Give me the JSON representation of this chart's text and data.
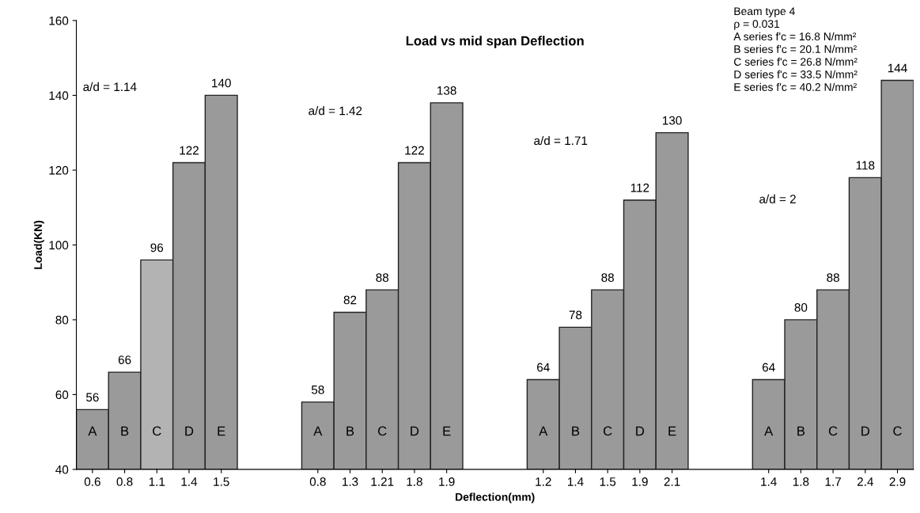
{
  "chart_data": {
    "type": "bar",
    "title": "Load vs mid span Deflection",
    "xlabel": "Deflection(mm)",
    "ylabel": "Load(KN)",
    "categories": [
      "0.6",
      "0.8",
      "1.1",
      "1.4",
      "1.5",
      null,
      null,
      "0.8",
      "1.3",
      "1.21",
      "1.8",
      "1.9",
      null,
      null,
      "1.2",
      "1.4",
      "1.5",
      "1.9",
      "2.1",
      null,
      null,
      "1.4",
      "1.8",
      "1.7",
      "2.4",
      "2.9"
    ],
    "values": [
      56,
      66,
      96,
      122,
      140,
      null,
      null,
      58,
      82,
      88,
      122,
      138,
      null,
      null,
      64,
      78,
      88,
      112,
      130,
      null,
      null,
      64,
      80,
      88,
      118,
      144
    ],
    "colors": [
      "#9a9a9a",
      "#9a9a9a",
      "#b3b3b3",
      "#9a9a9a",
      "#9a9a9a",
      null,
      null,
      "#9a9a9a",
      "#9a9a9a",
      "#9a9a9a",
      "#9a9a9a",
      "#9a9a9a",
      null,
      null,
      "#9a9a9a",
      "#9a9a9a",
      "#9a9a9a",
      "#9a9a9a",
      "#9a9a9a",
      null,
      null,
      "#9a9a9a",
      "#9a9a9a",
      "#9a9a9a",
      "#9a9a9a",
      "#9a9a9a"
    ],
    "ylim": [
      40,
      160
    ],
    "yticks": [
      40,
      60,
      80,
      100,
      120,
      140,
      160
    ],
    "data_labels": true,
    "grid": false,
    "annotations": [
      "a/d = 1.14",
      "A",
      "B",
      "C",
      "D",
      "E",
      "a/d = 1.42",
      "A",
      "B",
      "C",
      "D",
      "E",
      "a/d = 1.71",
      "A",
      "B",
      "C",
      "D",
      "E",
      "a/d = 2",
      "A",
      "B",
      "C",
      "D",
      "C",
      "Beam type 4",
      "ρ = 0.031",
      "A series f'c = 16.8 N/mm²",
      "B series f'c = 20.1 N/mm²",
      "C series f'c = 26.8 N/mm²",
      "D series f'c = 33.5 N/mm²",
      "E series f'c = 40.2 N/mm²"
    ]
  }
}
